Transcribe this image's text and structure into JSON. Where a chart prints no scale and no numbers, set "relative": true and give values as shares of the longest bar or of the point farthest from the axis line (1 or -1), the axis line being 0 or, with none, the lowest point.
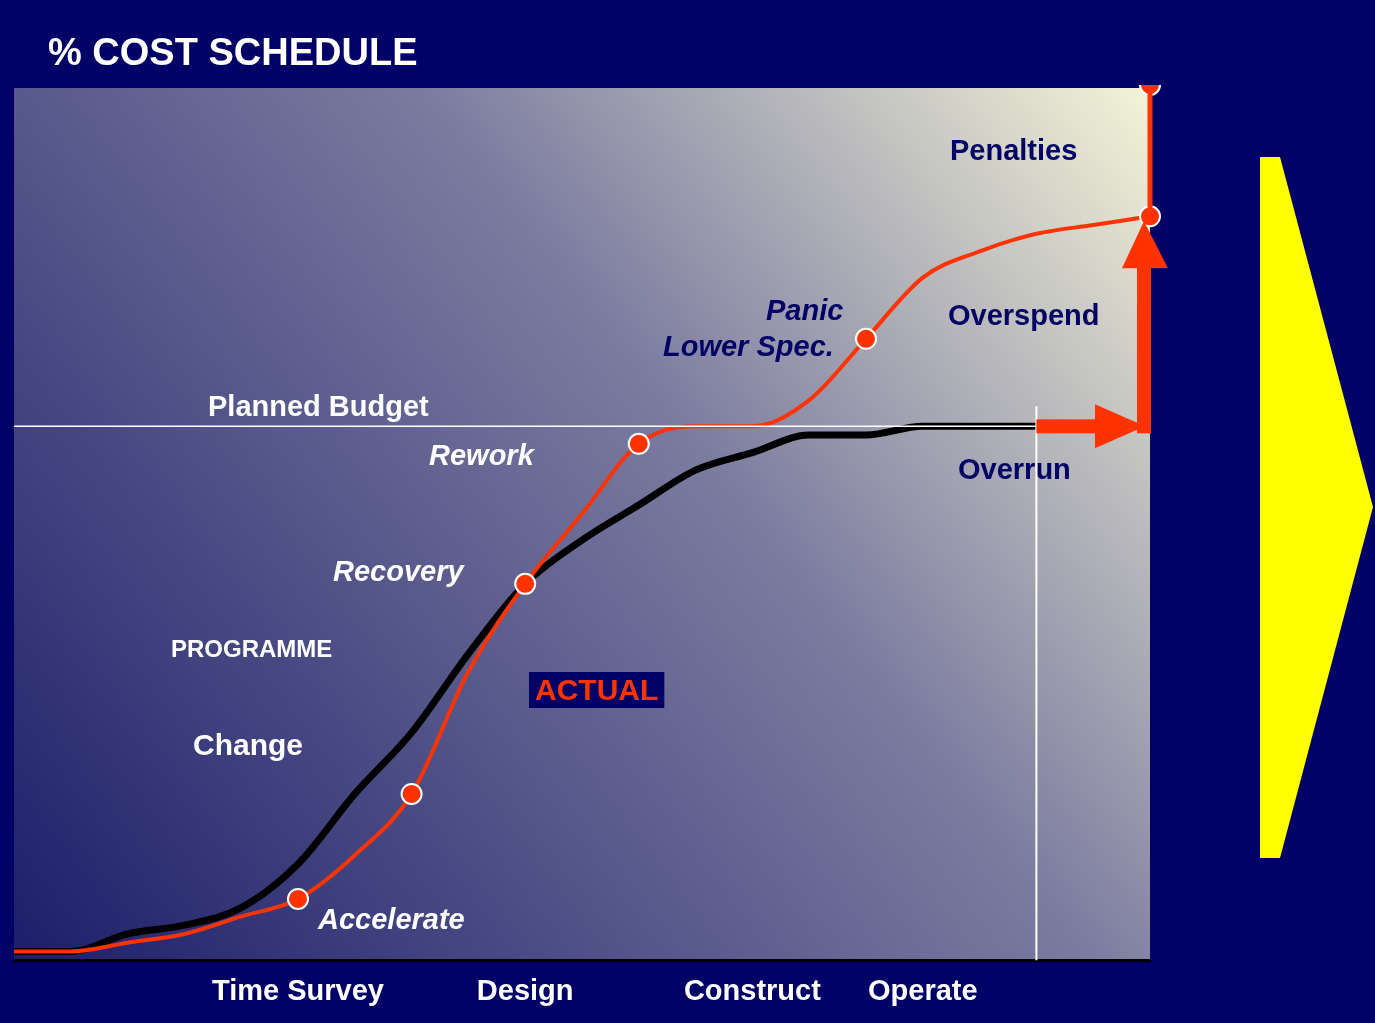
{
  "chart_data": {
    "type": "line",
    "title": "% COST SCHEDULE",
    "relative": true,
    "categories": [
      null,
      null,
      null,
      null,
      null,
      "Time Survey",
      null,
      null,
      null,
      "Design",
      null,
      null,
      null,
      "Construct",
      null,
      null,
      "Operate",
      null,
      null,
      null,
      null
    ],
    "series": [
      {
        "color": "#000000",
        "marker": "none",
        "values": [
          0.01,
          0.01,
          0.03,
          0.04,
          0.06,
          0.11,
          0.19,
          0.26,
          0.35,
          0.43,
          0.48,
          0.52,
          0.56,
          0.58,
          0.6,
          0.6,
          0.61,
          0.61,
          0.61,
          null,
          null
        ]
      },
      {
        "name": "ACTUAL",
        "color": "#ff3300",
        "marker": "none",
        "values": [
          0.01,
          0.01,
          0.02,
          0.03,
          0.05,
          0.07,
          0.12,
          0.19,
          0.33,
          0.43,
          0.51,
          0.59,
          0.61,
          0.61,
          0.64,
          0.71,
          0.78,
          0.81,
          0.83,
          0.84,
          0.85
        ]
      },
      {
        "type": "scatter",
        "color": "#ff3300",
        "marker": "circle",
        "values": [
          null,
          null,
          null,
          null,
          null,
          0.07,
          null,
          0.19,
          null,
          0.43,
          null,
          0.59,
          null,
          null,
          null,
          0.71,
          null,
          null,
          null,
          null,
          0.85
        ]
      },
      {
        "type": "scatter",
        "color": "#ff3300",
        "marker": "circle",
        "values": [
          null,
          null,
          null,
          null,
          null,
          null,
          null,
          null,
          null,
          null,
          null,
          null,
          null,
          null,
          null,
          null,
          null,
          null,
          null,
          null,
          1
        ]
      }
    ],
    "ref_lines": [
      {
        "axis": "y",
        "value": 0.61,
        "label": "Planned Budget",
        "color": "#ffffff"
      }
    ],
    "annotations": [
      "Penalties",
      "Overspend",
      "Overrun",
      "Panic",
      "Lower Spec.",
      "Rework",
      "Recovery",
      "PROGRAMME",
      "Change",
      "Accelerate"
    ],
    "grid": false,
    "legend": false
  }
}
